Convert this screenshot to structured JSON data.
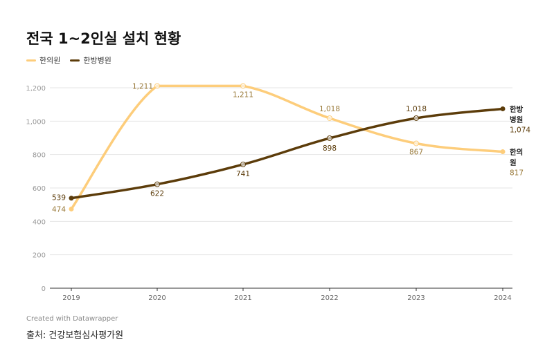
{
  "title": "전국 1~2인실 설치 현황",
  "colors": {
    "hanuiwon": "#fdcd7b",
    "hanbang": "#5c3c0a",
    "hanuiwon_label": "#9a7a3a",
    "axis": "#333333",
    "grid": "#e6e6e6",
    "tick": "#999999"
  },
  "chart_data": {
    "type": "line",
    "title": "전국 1~2인실 설치 현황",
    "xlabel": "",
    "ylabel": "",
    "x": [
      "2019",
      "2020",
      "2021",
      "2022",
      "2023",
      "2024"
    ],
    "ylim": [
      0,
      1300
    ],
    "yticks": [
      "0",
      "200",
      "400",
      "600",
      "800",
      "1,000",
      "1,200"
    ],
    "grid": true,
    "legend": "top-left",
    "series": [
      {
        "name": "한의원",
        "values": [
          474,
          1211,
          1211,
          1018,
          867,
          817
        ],
        "labels": [
          "474",
          "1,211",
          "1,211",
          "1,018",
          "867",
          "817"
        ],
        "end_label": [
          "한의",
          "원"
        ]
      },
      {
        "name": "한방병원",
        "values": [
          539,
          622,
          741,
          898,
          1018,
          1074
        ],
        "labels": [
          "539",
          "622",
          "741",
          "898",
          "1,018",
          "1,074"
        ],
        "end_label": [
          "한방",
          "병원"
        ]
      }
    ]
  },
  "footer": {
    "credit": "Created with Datawrapper",
    "source": "출처: 건강보험심사평가원"
  }
}
